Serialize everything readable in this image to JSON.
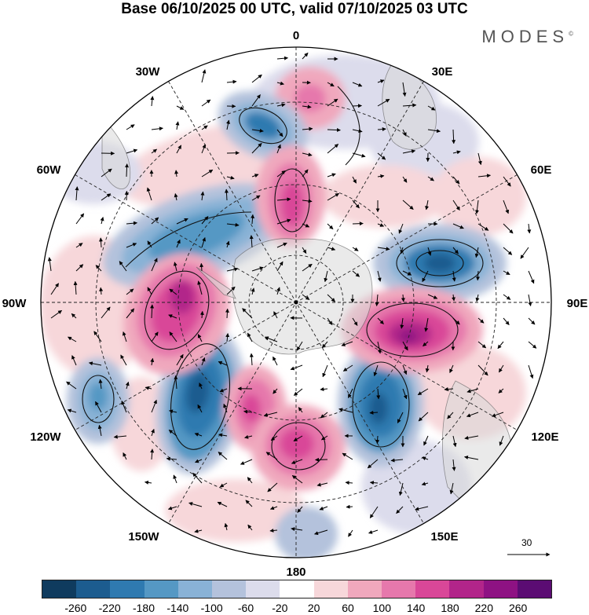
{
  "title": "Base 06/10/2025 00 UTC, valid 07/10/2025 03 UTC",
  "brand": "MODES",
  "brand_mark": "©",
  "map": {
    "projection": "south-polar-stereographic",
    "longitude_labels": {
      "top": "0",
      "top_right": "30E",
      "upper_right": "60E",
      "right": "90E",
      "lower_right": "120E",
      "bottom_right": "150E",
      "bottom": "180",
      "bottom_left": "150W",
      "lower_left": "120W",
      "left": "90W",
      "upper_left": "60W",
      "top_left": "30W"
    },
    "vector_reference": {
      "label": "30"
    }
  },
  "colorbar": {
    "ticks": [
      "-260",
      "-220",
      "-180",
      "-140",
      "-100",
      "-60",
      "-20",
      "20",
      "60",
      "100",
      "140",
      "180",
      "220",
      "260"
    ],
    "colors": [
      "#0f3b5e",
      "#1c5c8f",
      "#2f7ab0",
      "#5598c4",
      "#89b2d6",
      "#b4c2dc",
      "#dcdcec",
      "#ffffff",
      "#f7d7da",
      "#f0a8bd",
      "#e678ac",
      "#d94798",
      "#b2258a",
      "#8e1283",
      "#5b0c73"
    ]
  },
  "colors": {
    "land_gray": "#d3d3d3",
    "neg_strong": "#1c5c8f",
    "pos_strong": "#b2258a"
  }
}
